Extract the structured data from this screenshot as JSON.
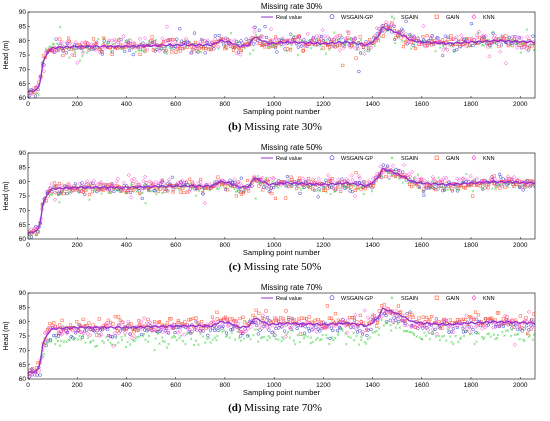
{
  "colors": {
    "real": "#9932cc",
    "wsgain_gp": "#3333cc",
    "sgain": "#33cc33",
    "gain": "#ff5533",
    "knn": "#ff33cc",
    "axis": "#000000",
    "caption_bold": "#000000"
  },
  "chart_data": [
    {
      "type": "scatter",
      "title": "Missing rate 30%",
      "caption_label": "(b)",
      "caption_text": " Missing rate 30%",
      "xlabel": "Sampling point number",
      "ylabel": "Head (m)",
      "xlim": [
        0,
        2060
      ],
      "ylim": [
        60,
        90
      ],
      "xticks": [
        0,
        200,
        400,
        600,
        800,
        1000,
        1200,
        1400,
        1600,
        1800,
        2000
      ],
      "yticks": [
        60,
        65,
        70,
        75,
        80,
        85,
        90
      ],
      "legend": [
        "Real value",
        "WSGAIN-GP",
        "SGAIN",
        "GAIN",
        "KNN"
      ],
      "legend_position": "top",
      "missing_rate": 0.3,
      "series_offsets": {
        "WSGAIN-GP": 0,
        "SGAIN": -0.5,
        "GAIN": -0.3,
        "KNN": 0.4
      },
      "spread": 1.3,
      "real_value_key_points": {
        "x": [
          0,
          20,
          40,
          50,
          60,
          80,
          100,
          200,
          400,
          600,
          750,
          780,
          820,
          860,
          900,
          920,
          940,
          980,
          1050,
          1200,
          1300,
          1380,
          1420,
          1440,
          1480,
          1520,
          1560,
          1600,
          1700,
          1800,
          1900,
          2060
        ],
        "y": [
          62,
          62.5,
          63,
          66,
          72,
          76,
          77.5,
          78,
          78,
          78.5,
          78.5,
          80,
          79.5,
          78,
          78.5,
          81.5,
          80.5,
          79,
          79.5,
          79,
          79.5,
          78.5,
          81,
          84.5,
          83.5,
          82,
          80,
          79.5,
          79,
          79.5,
          80,
          79.5
        ]
      }
    },
    {
      "type": "scatter",
      "title": "Missing rate 50%",
      "caption_label": "(c)",
      "caption_text": " Missing rate 50%",
      "xlabel": "Sampling point number",
      "ylabel": "Head (m)",
      "xlim": [
        0,
        2060
      ],
      "ylim": [
        60,
        90
      ],
      "xticks": [
        0,
        200,
        400,
        600,
        800,
        1000,
        1200,
        1400,
        1600,
        1800,
        2000
      ],
      "yticks": [
        60,
        65,
        70,
        75,
        80,
        85,
        90
      ],
      "legend": [
        "Real value",
        "WSGAIN-GP",
        "SGAIN",
        "GAIN",
        "KNN"
      ],
      "legend_position": "top",
      "missing_rate": 0.5,
      "series_offsets": {
        "WSGAIN-GP": -0.2,
        "SGAIN": -0.8,
        "GAIN": -0.5,
        "KNN": 0.5
      },
      "spread": 1.0,
      "real_value_key_points": {
        "x": [
          0,
          20,
          40,
          50,
          60,
          80,
          100,
          200,
          400,
          600,
          750,
          780,
          820,
          860,
          900,
          920,
          940,
          980,
          1050,
          1200,
          1300,
          1380,
          1420,
          1440,
          1480,
          1520,
          1560,
          1600,
          1700,
          1800,
          1900,
          2060
        ],
        "y": [
          62,
          62.5,
          63,
          66,
          72,
          76,
          77.5,
          78,
          78,
          78.5,
          78.5,
          80,
          79.5,
          78,
          78.5,
          81.5,
          80.5,
          79,
          79.5,
          79,
          79.5,
          78.5,
          81,
          84.5,
          83.5,
          82,
          80,
          79.5,
          79,
          79.5,
          80,
          79.5
        ]
      }
    },
    {
      "type": "scatter",
      "title": "Missing rate 70%",
      "caption_label": "(d)",
      "caption_text": " Missing rate 70%",
      "xlabel": "Sampling point number",
      "ylabel": "Head (m)",
      "xlim": [
        0,
        2060
      ],
      "ylim": [
        60,
        90
      ],
      "xticks": [
        0,
        200,
        400,
        600,
        800,
        1000,
        1200,
        1400,
        1600,
        1800,
        2000
      ],
      "yticks": [
        60,
        65,
        70,
        75,
        80,
        85,
        90
      ],
      "legend": [
        "Real value",
        "WSGAIN-GP",
        "SGAIN",
        "GAIN",
        "KNN"
      ],
      "legend_position": "top",
      "missing_rate": 0.7,
      "series_offsets": {
        "WSGAIN-GP": -1.0,
        "SGAIN": -4.5,
        "GAIN": 1.0,
        "KNN": -0.5
      },
      "spread": 1.2,
      "real_value_key_points": {
        "x": [
          0,
          20,
          40,
          50,
          60,
          80,
          100,
          200,
          400,
          600,
          750,
          780,
          820,
          860,
          900,
          920,
          940,
          980,
          1050,
          1200,
          1300,
          1380,
          1420,
          1440,
          1480,
          1520,
          1560,
          1600,
          1700,
          1800,
          1900,
          2060
        ],
        "y": [
          62,
          62.5,
          63,
          66,
          72,
          76,
          77.5,
          78,
          78,
          78.5,
          78.5,
          80,
          79.5,
          78,
          78.5,
          81.5,
          80.5,
          79,
          79.5,
          79,
          79.5,
          78.5,
          81,
          84.5,
          83.5,
          82,
          80,
          79.5,
          79,
          79.5,
          80,
          79.5
        ]
      }
    }
  ]
}
